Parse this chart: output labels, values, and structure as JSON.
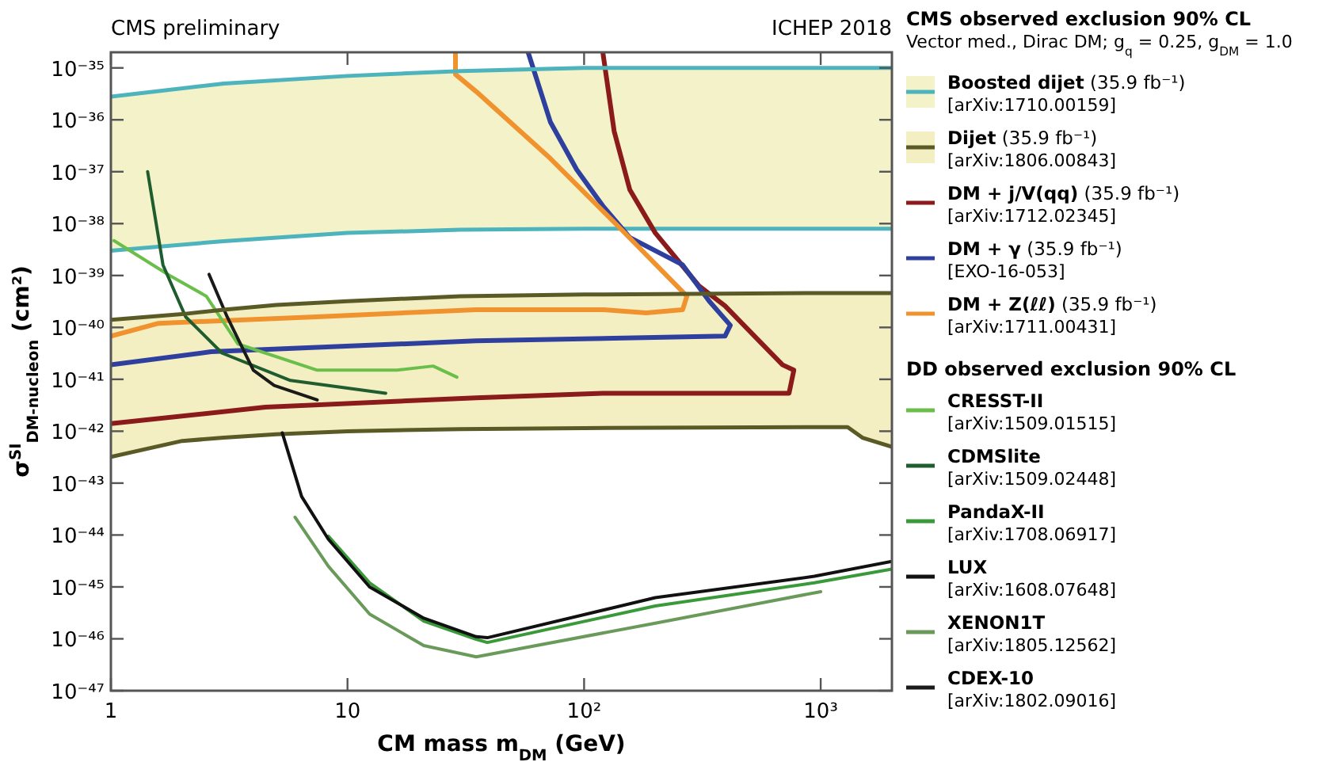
{
  "chart_data": {
    "type": "line",
    "title": "CMS preliminary",
    "subtitle": "Vector med., Dirac DM; g$_{q}$ = 0.25, g$_{DM}$ = 1.0",
    "legend_title": "CMS observed exclusion 90% CL",
    "xlabel": "CM mass m$_{DM}$ (GeV)",
    "ylabel": "σ$^{SI}$$_{DM-nucleon}$ (cm²)",
    "annotations": [
      "ICHEP 2018",
      "DD observed exclusion 90% CL"
    ],
    "log": "xy",
    "grid": false,
    "legend": "right",
    "xlim": [
      1,
      2000
    ],
    "ylim": [
      1e-47,
      2e-35
    ],
    "xticks": [
      1,
      10,
      {
        "value": 100,
        "label": "10²"
      },
      {
        "value": 1000,
        "label": "10³"
      }
    ],
    "yticks": [
      {
        "value": 1e-47,
        "label": "10⁻⁴⁷"
      },
      {
        "value": 1e-46,
        "label": "10⁻⁴⁶"
      },
      {
        "value": 1e-45,
        "label": "10⁻⁴⁵"
      },
      {
        "value": 1e-44,
        "label": "10⁻⁴⁴"
      },
      {
        "value": 1e-43,
        "label": "10⁻⁴³"
      },
      {
        "value": 1e-42,
        "label": "10⁻⁴²"
      },
      {
        "value": 1e-41,
        "label": "10⁻⁴¹"
      },
      {
        "value": 1e-40,
        "label": "10⁻⁴⁰"
      },
      {
        "value": 1e-39,
        "label": "10⁻³⁹"
      },
      {
        "value": 1e-38,
        "label": "10⁻³⁸"
      },
      {
        "value": 1e-37,
        "label": "10⁻³⁷"
      },
      {
        "value": 1e-36,
        "label": "10⁻³⁶"
      },
      {
        "value": 1e-35,
        "label": "10⁻³⁵"
      }
    ],
    "series": [
      {
        "name": "Boosted dijet (35.9 fb⁻¹) [arXiv:1710.00159]",
        "color": "#4db3bd",
        "x": [
          1,
          3,
          10,
          30,
          100,
          300,
          1000,
          2000
        ],
        "values": [
          3e-39,
          4.6e-39,
          6.6e-39,
          7.6e-39,
          8e-39,
          8e-39,
          8e-39,
          8e-39
        ],
        "lower": [
          3e-39,
          4.6e-39,
          6.6e-39,
          7.6e-39,
          8e-39,
          8e-39,
          8e-39,
          8e-39
        ],
        "upper": [
          2.8e-36,
          5e-36,
          7e-36,
          8.7e-36,
          1e-35,
          1e-35,
          1e-35,
          1e-35
        ]
      },
      {
        "name": "Dijet (35.9 fb⁻¹) [arXiv:1806.00843]",
        "color": "#5a5a26",
        "x": [
          1,
          2,
          3,
          5,
          10,
          30,
          100,
          1000,
          1300,
          1500,
          2000
        ],
        "values": [
          3.2e-43,
          6.5e-43,
          7.5e-43,
          8.7e-43,
          1e-42,
          1.1e-42,
          1.15e-42,
          1.2e-42,
          1.2e-42,
          7.5e-43,
          5e-43
        ],
        "lower": [
          3.2e-43,
          6.5e-43,
          7.5e-43,
          8.7e-43,
          1e-42,
          1.1e-42,
          1.15e-42,
          1.2e-42,
          1.2e-42,
          7.5e-43,
          5e-43
        ],
        "upper": [
          1.4e-40,
          1.8e-40,
          2.2e-40,
          2.7e-40,
          3.2e-40,
          4e-40,
          4.3e-40,
          4.6e-40,
          4.6e-40,
          4.6e-40,
          4.6e-40
        ]
      },
      {
        "name": "DM + j/V(qq) (35.9 fb⁻¹) [arXiv:1712.02345]",
        "color": "#8b1a1a",
        "x": [
          1,
          4.5,
          34.9,
          120,
          735,
          770,
          690,
          565,
          394,
          305,
          200,
          156,
          134,
          120
        ],
        "values": [
          1.4e-42,
          2.9e-42,
          4.4e-42,
          5.4e-42,
          5.4e-42,
          1.5e-41,
          1.9e-41,
          4.8e-41,
          2.6e-40,
          6.4e-40,
          6.6e-39,
          4.5e-38,
          6e-37,
          2e-35
        ]
      },
      {
        "name": "DM + γ (35.9 fb⁻¹) [EXO-16-053]",
        "color": "#2e3f9e",
        "x": [
          1,
          2.65,
          34.9,
          394,
          415,
          338,
          261,
          156,
          120,
          93,
          72,
          58
        ],
        "values": [
          1.9e-41,
          3.4e-41,
          5.5e-41,
          6.8e-41,
          1.1e-40,
          3.2e-40,
          1.6e-39,
          5.4e-39,
          2.2e-38,
          1.1e-37,
          9.1e-37,
          2e-35
        ]
      },
      {
        "name": "DM + Z(ℓℓ) (35.9 fb⁻¹) [arXiv:1711.00431]",
        "color": "#f0922e",
        "x": [
          1,
          1.59,
          7.4,
          34.9,
          120,
          183,
          261,
          272,
          140,
          72,
          35,
          28.6,
          28.6
        ],
        "values": [
          6.8e-41,
          1.2e-40,
          1.6e-40,
          2.2e-40,
          2.2e-40,
          1.9e-40,
          2.2e-40,
          4e-40,
          8.7e-39,
          1.8e-37,
          3.5e-36,
          7.5e-36,
          2e-35
        ]
      },
      {
        "name": "CRESST-II [arXiv:1509.01515]",
        "color": "#6abf4b",
        "x": [
          1.03,
          1.77,
          2.53,
          3.44,
          7.45,
          16.2,
          23,
          29
        ],
        "values": [
          4.7e-39,
          1e-39,
          4e-40,
          4.8e-41,
          1.5e-41,
          1.5e-41,
          1.8e-41,
          1.1e-41
        ]
      },
      {
        "name": "CDMSlite [arXiv:1509.02448]",
        "color": "#1f5c2e",
        "x": [
          1.43,
          1.66,
          2.07,
          2.95,
          5.74,
          14.5
        ],
        "values": [
          1e-37,
          1.6e-39,
          1.6e-40,
          3.2e-41,
          9.5e-42,
          5.4e-42
        ]
      },
      {
        "name": "PandaX-II [arXiv:1708.06917]",
        "color": "#3a9a3a",
        "x": [
          8.3,
          12.4,
          21,
          35,
          39,
          200,
          940,
          2000
        ],
        "values": [
          9.5e-45,
          1.2e-45,
          2.2e-46,
          9.8e-47,
          8.5e-47,
          4.3e-46,
          1.2e-45,
          2.2e-45
        ]
      },
      {
        "name": "LUX [arXiv:1608.07648]",
        "color": "#111111",
        "x": [
          5.3,
          6.4,
          8.3,
          12.4,
          21,
          35,
          39,
          200,
          940,
          2000
        ],
        "values": [
          9.3e-43,
          5.5e-44,
          8.3e-45,
          1e-45,
          2.5e-46,
          1.1e-46,
          1.05e-46,
          6.2e-46,
          1.6e-45,
          3.1e-45
        ]
      },
      {
        "name": "XENON1T [arXiv:1805.12562]",
        "color": "#6a9a5a",
        "x": [
          6,
          8.3,
          12.4,
          21,
          35,
          200,
          1000
        ],
        "values": [
          2.2e-44,
          2.5e-45,
          3e-46,
          7.4e-47,
          4.5e-47,
          2e-46,
          8.1e-46
        ]
      },
      {
        "name": "CDEX-10 [arXiv:1802.09016]",
        "color": "#1a1a1a",
        "x": [
          2.6,
          3.1,
          4,
          4.9,
          7.45
        ],
        "values": [
          1.05e-39,
          1.6e-40,
          1.5e-41,
          7.6e-42,
          4e-42
        ]
      },
      {
        "color": "#4db3bd",
        "x": [
          1,
          3,
          10,
          30,
          100,
          300,
          1000,
          2000
        ],
        "values": [
          2.8e-36,
          5e-36,
          7e-36,
          8.7e-36,
          1e-35,
          1e-35,
          1e-35,
          1e-35
        ]
      },
      {
        "color": "#5a5a26",
        "x": [
          1,
          2,
          3,
          5,
          10,
          30,
          100,
          1000,
          1300,
          1500,
          2000
        ],
        "values": [
          1.4e-40,
          1.8e-40,
          2.2e-40,
          2.7e-40,
          3.2e-40,
          4e-40,
          4.3e-40,
          4.6e-40,
          4.6e-40,
          4.6e-40,
          4.6e-40
        ]
      }
    ]
  }
}
